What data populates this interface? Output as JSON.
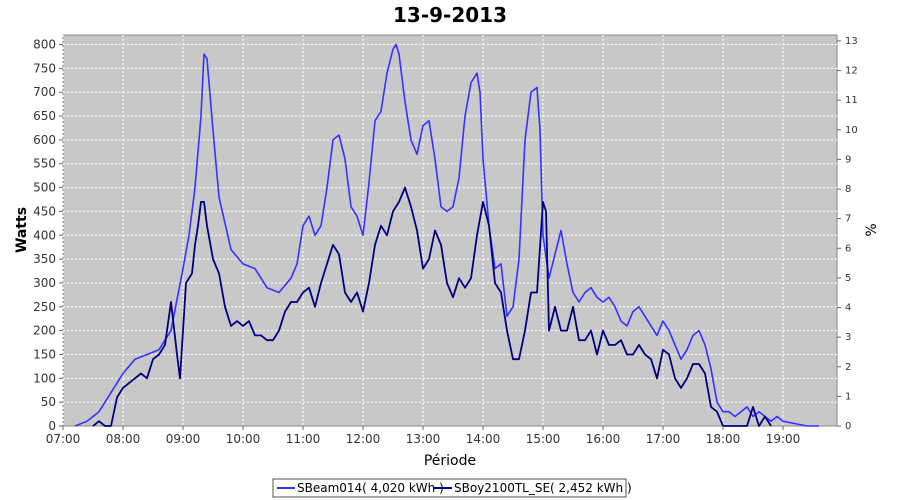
{
  "chart_data": {
    "type": "line",
    "title": "13-9-2013",
    "xlabel": "Période",
    "ylabel": "Watts",
    "ylabel_right": "%",
    "xlim": [
      7.0,
      19.9
    ],
    "ylim": [
      0,
      820
    ],
    "ylim_right": [
      0,
      13.2
    ],
    "grid": true,
    "legend_position": "bottom",
    "x_ticks": [
      "07:00",
      "08:00",
      "09:00",
      "10:00",
      "11:00",
      "12:00",
      "13:00",
      "14:00",
      "15:00",
      "16:00",
      "17:00",
      "18:00",
      "19:00"
    ],
    "y_ticks": [
      0,
      50,
      100,
      150,
      200,
      250,
      300,
      350,
      400,
      450,
      500,
      550,
      600,
      650,
      700,
      750,
      800
    ],
    "y_ticks_right": [
      0,
      1,
      2,
      3,
      4,
      5,
      6,
      7,
      8,
      9,
      10,
      11,
      12,
      13
    ],
    "series": [
      {
        "name": "SBeam014( 4,020 kWh )",
        "color": "#3333ff",
        "x": [
          7.2,
          7.4,
          7.6,
          7.8,
          8.0,
          8.2,
          8.4,
          8.6,
          8.8,
          9.0,
          9.1,
          9.2,
          9.3,
          9.35,
          9.4,
          9.5,
          9.6,
          9.8,
          10.0,
          10.2,
          10.4,
          10.6,
          10.8,
          10.9,
          11.0,
          11.1,
          11.2,
          11.3,
          11.4,
          11.5,
          11.6,
          11.7,
          11.8,
          11.9,
          12.0,
          12.1,
          12.2,
          12.3,
          12.4,
          12.5,
          12.55,
          12.6,
          12.7,
          12.8,
          12.9,
          13.0,
          13.1,
          13.2,
          13.3,
          13.4,
          13.5,
          13.6,
          13.7,
          13.8,
          13.9,
          13.95,
          14.0,
          14.1,
          14.2,
          14.3,
          14.4,
          14.5,
          14.6,
          14.7,
          14.8,
          14.9,
          14.95,
          15.0,
          15.1,
          15.2,
          15.3,
          15.4,
          15.5,
          15.6,
          15.7,
          15.8,
          15.9,
          16.0,
          16.1,
          16.2,
          16.3,
          16.4,
          16.5,
          16.6,
          16.7,
          16.8,
          16.9,
          17.0,
          17.1,
          17.2,
          17.3,
          17.4,
          17.5,
          17.6,
          17.7,
          17.8,
          17.9,
          18.0,
          18.1,
          18.2,
          18.3,
          18.4,
          18.5,
          18.6,
          18.7,
          18.8,
          18.9,
          19.0,
          19.2,
          19.4,
          19.6
        ],
        "y": [
          0,
          10,
          30,
          70,
          110,
          140,
          150,
          160,
          200,
          330,
          400,
          500,
          650,
          780,
          770,
          620,
          480,
          370,
          340,
          330,
          290,
          280,
          310,
          340,
          420,
          440,
          400,
          420,
          500,
          600,
          610,
          560,
          460,
          440,
          400,
          510,
          640,
          660,
          740,
          790,
          800,
          780,
          680,
          600,
          570,
          630,
          640,
          560,
          460,
          450,
          460,
          520,
          650,
          720,
          740,
          700,
          560,
          420,
          330,
          340,
          230,
          250,
          350,
          600,
          700,
          710,
          620,
          400,
          310,
          360,
          410,
          340,
          280,
          260,
          280,
          290,
          270,
          260,
          270,
          250,
          220,
          210,
          240,
          250,
          230,
          210,
          190,
          220,
          200,
          170,
          140,
          160,
          190,
          200,
          170,
          120,
          50,
          30,
          30,
          20,
          30,
          40,
          20,
          30,
          20,
          10,
          20,
          10,
          5,
          0,
          0
        ]
      },
      {
        "name": "SBoy2100TL_SE( 2,452 kWh )",
        "color": "#000080",
        "x": [
          7.5,
          7.6,
          7.7,
          7.8,
          7.9,
          8.0,
          8.1,
          8.2,
          8.3,
          8.4,
          8.5,
          8.6,
          8.7,
          8.8,
          8.9,
          8.95,
          9.0,
          9.05,
          9.1,
          9.15,
          9.2,
          9.25,
          9.3,
          9.35,
          9.4,
          9.5,
          9.6,
          9.7,
          9.8,
          9.9,
          10.0,
          10.1,
          10.2,
          10.3,
          10.4,
          10.5,
          10.6,
          10.7,
          10.8,
          10.9,
          11.0,
          11.1,
          11.2,
          11.3,
          11.4,
          11.5,
          11.6,
          11.7,
          11.8,
          11.9,
          12.0,
          12.1,
          12.2,
          12.3,
          12.4,
          12.5,
          12.6,
          12.7,
          12.8,
          12.9,
          13.0,
          13.1,
          13.2,
          13.3,
          13.4,
          13.5,
          13.6,
          13.7,
          13.8,
          13.9,
          14.0,
          14.1,
          14.2,
          14.3,
          14.4,
          14.5,
          14.6,
          14.7,
          14.8,
          14.9,
          15.0,
          15.05,
          15.1,
          15.2,
          15.3,
          15.4,
          15.5,
          15.6,
          15.7,
          15.8,
          15.9,
          16.0,
          16.1,
          16.2,
          16.3,
          16.4,
          16.5,
          16.6,
          16.7,
          16.8,
          16.9,
          17.0,
          17.1,
          17.2,
          17.3,
          17.4,
          17.5,
          17.6,
          17.7,
          17.8,
          17.9,
          18.0,
          18.2,
          18.4,
          18.5,
          18.6,
          18.7,
          18.8
        ],
        "y": [
          0,
          10,
          0,
          0,
          60,
          80,
          90,
          100,
          110,
          100,
          140,
          150,
          170,
          260,
          150,
          100,
          200,
          300,
          310,
          320,
          380,
          420,
          470,
          470,
          420,
          350,
          320,
          250,
          210,
          220,
          210,
          220,
          190,
          190,
          180,
          180,
          200,
          240,
          260,
          260,
          280,
          290,
          250,
          300,
          340,
          380,
          360,
          280,
          260,
          280,
          240,
          300,
          380,
          420,
          400,
          450,
          470,
          500,
          460,
          410,
          330,
          350,
          410,
          380,
          300,
          270,
          310,
          290,
          310,
          400,
          470,
          420,
          300,
          280,
          200,
          140,
          140,
          200,
          280,
          280,
          470,
          450,
          200,
          250,
          200,
          200,
          250,
          180,
          180,
          200,
          150,
          200,
          170,
          170,
          180,
          150,
          150,
          170,
          150,
          140,
          100,
          160,
          150,
          100,
          80,
          100,
          130,
          130,
          110,
          40,
          30,
          0,
          0,
          0,
          40,
          0,
          20,
          0
        ]
      }
    ]
  }
}
